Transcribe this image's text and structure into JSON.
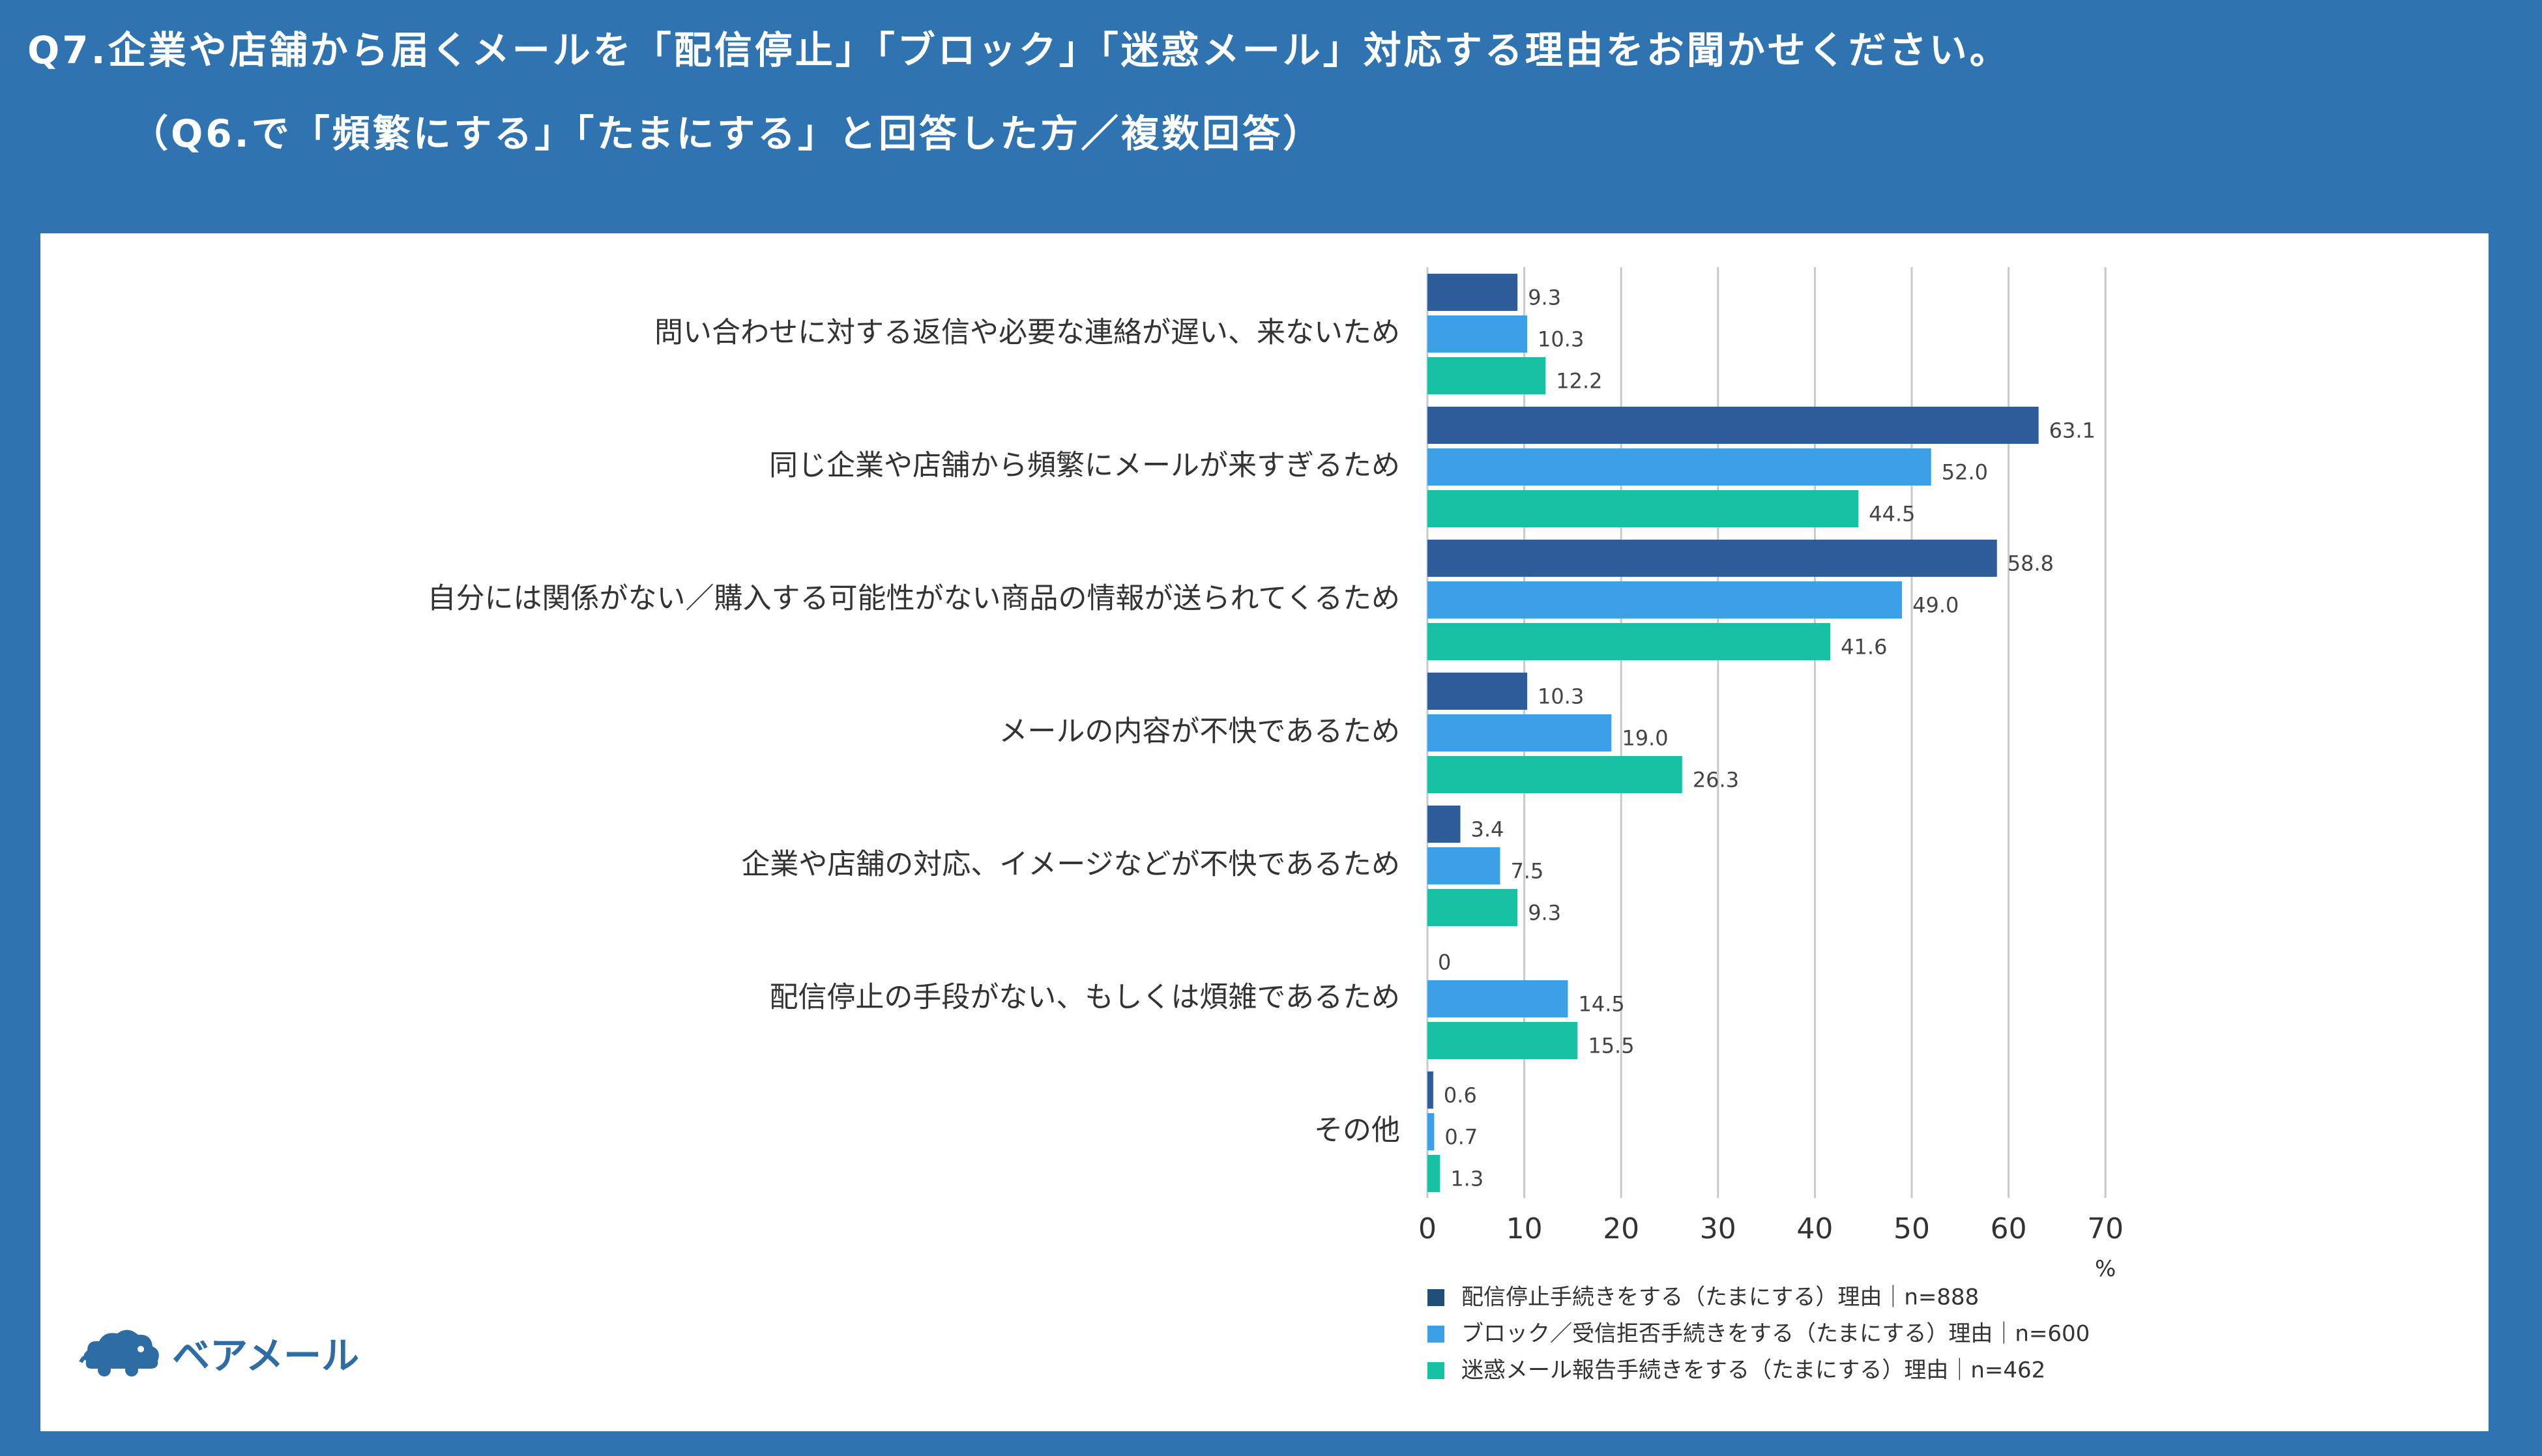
{
  "header": {
    "line1": "Q7.企業や店舗から届くメールを「配信停止」「ブロック」「迷惑メール」対応する理由をお聞かせください。",
    "line2": "（Q6.で「頻繁にする」「たまにする」と回答した方／複数回答）"
  },
  "logo": {
    "text": "ベアメール",
    "icon": "bear-cloud-icon"
  },
  "chart_data": {
    "type": "bar",
    "orientation": "horizontal",
    "categories": [
      "問い合わせに対する返信や必要な連絡が遅い、来ないため",
      "同じ企業や店舗から頻繁にメールが来すぎるため",
      "自分には関係がない／購入する可能性がない商品の情報が送られてくるため",
      "メールの内容が不快であるため",
      "企業や店舗の対応、イメージなどが不快であるため",
      "配信停止の手段がない、もしくは煩雑であるため",
      "その他"
    ],
    "series": [
      {
        "name": "配信停止手続きをする（たまにする）理由｜n=888",
        "color": "#2f5d9c",
        "values": [
          9.3,
          63.1,
          58.8,
          10.3,
          3.4,
          0,
          0.6
        ],
        "labels": [
          "9.3",
          "63.1",
          "58.8",
          "10.3",
          "3.4",
          "0",
          "0.6"
        ]
      },
      {
        "name": "ブロック／受信拒否手続きをする（たまにする）理由｜n=600",
        "color": "#3ba0e8",
        "values": [
          10.3,
          52.0,
          49.0,
          19.0,
          7.5,
          14.5,
          0.7
        ],
        "labels": [
          "10.3",
          "52.0",
          "49.0",
          "19.0",
          "7.5",
          "14.5",
          "0.7"
        ]
      },
      {
        "name": "迷惑メール報告手続きをする（たまにする）理由｜n=462",
        "color": "#17c2a4",
        "values": [
          12.2,
          44.5,
          41.6,
          26.3,
          9.3,
          15.5,
          1.3
        ],
        "labels": [
          "12.2",
          "44.5",
          "41.6",
          "26.3",
          "9.3",
          "15.5",
          "1.3"
        ]
      }
    ],
    "legend_colors": [
      "#1f4e79",
      "#3ba0e8",
      "#17c2a4"
    ],
    "xlim": [
      0,
      70
    ],
    "xticks": [
      "0",
      "10",
      "20",
      "30",
      "40",
      "50",
      "60",
      "70"
    ],
    "xunit": "%",
    "grid": true,
    "legend_position": "bottom"
  }
}
